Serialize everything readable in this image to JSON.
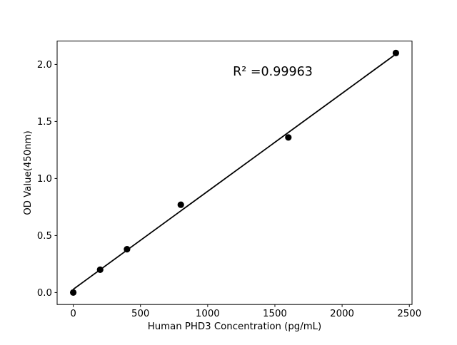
{
  "chart_data": {
    "type": "scatter",
    "title": "",
    "xlabel": "Human PHD3 Concentration (pg/mL)",
    "ylabel": "OD Value(450nm)",
    "annotation": "R² =0.99963",
    "r_squared": 0.99963,
    "x": [
      0,
      200,
      400,
      800,
      1600,
      2400
    ],
    "y": [
      0.0,
      0.2,
      0.38,
      0.77,
      1.36,
      2.1
    ],
    "xticks": [
      0,
      500,
      1000,
      1500,
      2000,
      2500
    ],
    "yticks": [
      0.0,
      0.5,
      1.0,
      1.5,
      2.0
    ],
    "xtick_labels": [
      "0",
      "500",
      "1000",
      "1500",
      "2000",
      "2500"
    ],
    "ytick_labels": [
      "0.0",
      "0.5",
      "1.0",
      "1.5",
      "2.0"
    ],
    "xlim": [
      -120,
      2520
    ],
    "ylim": [
      -0.105,
      2.205
    ],
    "fit_line": true,
    "grid": false,
    "legend": null,
    "colors": {
      "marker": "#000000",
      "line": "#000000",
      "text": "#000000",
      "spine": "#000000",
      "background": "#ffffff"
    }
  }
}
